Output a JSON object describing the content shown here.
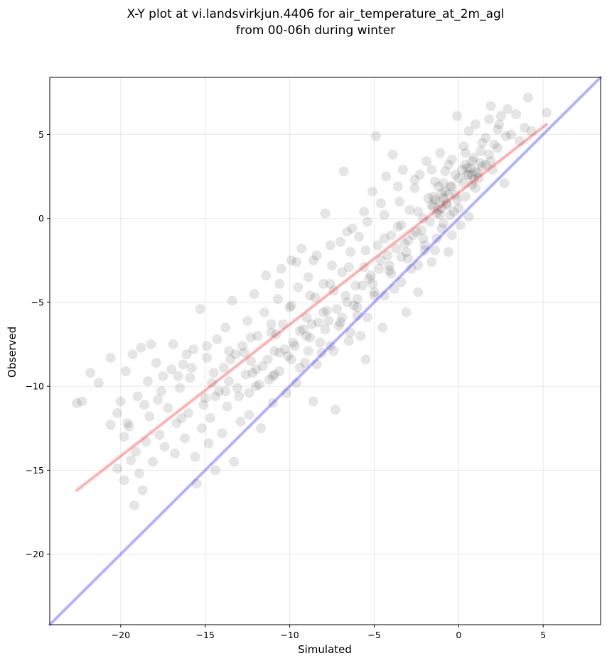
{
  "chart_data": {
    "type": "scatter",
    "title": "X-Y plot at vi.landsvirkjun.4406 for air_temperature_at_2m_agl",
    "subtitle": "from 00-06h during winter",
    "xlabel": "Simulated",
    "ylabel": "Observed",
    "xlim": [
      -24.2,
      8.4
    ],
    "ylim": [
      -24.2,
      8.4
    ],
    "x_ticks": [
      -20,
      -15,
      -10,
      -5,
      0,
      5
    ],
    "y_ticks": [
      -20,
      -15,
      -10,
      -5,
      0,
      5
    ],
    "x_tick_labels": [
      "−20",
      "−15",
      "−10",
      "−5",
      "0",
      "5"
    ],
    "y_tick_labels": [
      "−20",
      "−15",
      "−10",
      "−5",
      "0",
      "5"
    ],
    "grid": true,
    "point_color": "#000000",
    "point_alpha": 0.1,
    "points": [
      [
        -22.6,
        -11.0
      ],
      [
        -22.3,
        -10.9
      ],
      [
        -21.8,
        -9.2
      ],
      [
        -21.3,
        -9.8
      ],
      [
        -20.6,
        -8.3
      ],
      [
        -20.6,
        -12.3
      ],
      [
        -20.2,
        -14.9
      ],
      [
        -20.0,
        -10.9
      ],
      [
        -19.8,
        -15.6
      ],
      [
        -19.8,
        -13.0
      ],
      [
        -19.7,
        -9.1
      ],
      [
        -19.5,
        -12.4
      ],
      [
        -19.4,
        -14.4
      ],
      [
        -19.3,
        -8.1
      ],
      [
        -19.2,
        -17.1
      ],
      [
        -19.1,
        -13.9
      ],
      [
        -19.0,
        -10.6
      ],
      [
        -18.9,
        -15.2
      ],
      [
        -18.8,
        -7.7
      ],
      [
        -18.7,
        -16.2
      ],
      [
        -18.5,
        -13.3
      ],
      [
        -18.4,
        -9.7
      ],
      [
        -18.3,
        -11.8
      ],
      [
        -18.2,
        -7.5
      ],
      [
        -18.1,
        -14.5
      ],
      [
        -17.9,
        -8.6
      ],
      [
        -17.7,
        -12.9
      ],
      [
        -17.6,
        -10.3
      ],
      [
        -17.4,
        -13.6
      ],
      [
        -17.2,
        -11.3
      ],
      [
        -17.0,
        -9.0
      ],
      [
        -16.9,
        -7.5
      ],
      [
        -16.8,
        -14.0
      ],
      [
        -16.7,
        -12.2
      ],
      [
        -16.5,
        -10.1
      ],
      [
        -16.3,
        -8.7
      ],
      [
        -16.2,
        -13.1
      ],
      [
        -16.0,
        -11.6
      ],
      [
        -15.9,
        -9.5
      ],
      [
        -15.7,
        -7.8
      ],
      [
        -15.6,
        -14.2
      ],
      [
        -15.5,
        -15.8
      ],
      [
        -15.3,
        -5.4
      ],
      [
        -15.2,
        -12.5
      ],
      [
        -15.0,
        -10.7
      ],
      [
        -14.9,
        -8.3
      ],
      [
        -14.8,
        -13.4
      ],
      [
        -14.7,
        -11.9
      ],
      [
        -14.5,
        -9.2
      ],
      [
        -14.4,
        -15.0
      ],
      [
        -14.3,
        -7.2
      ],
      [
        -14.2,
        -10.3
      ],
      [
        -14.0,
        -12.8
      ],
      [
        -13.9,
        -8.9
      ],
      [
        -13.8,
        -6.5
      ],
      [
        -13.7,
        -11.2
      ],
      [
        -13.6,
        -9.7
      ],
      [
        -13.4,
        -4.9
      ],
      [
        -13.3,
        -14.5
      ],
      [
        -13.2,
        -8.1
      ],
      [
        -13.0,
        -10.6
      ],
      [
        -12.9,
        -12.1
      ],
      [
        -12.8,
        -7.6
      ],
      [
        -12.6,
        -9.3
      ],
      [
        -12.5,
        -6.1
      ],
      [
        -12.4,
        -11.7
      ],
      [
        -12.3,
        -8.5
      ],
      [
        -12.1,
        -4.5
      ],
      [
        -12.0,
        -10.0
      ],
      [
        -11.9,
        -7.0
      ],
      [
        -11.7,
        -12.5
      ],
      [
        -11.6,
        -8.8
      ],
      [
        -11.5,
        -5.6
      ],
      [
        -11.4,
        -3.4
      ],
      [
        -11.2,
        -9.6
      ],
      [
        -11.1,
        -6.8
      ],
      [
        -11.0,
        -11.0
      ],
      [
        -10.9,
        -7.9
      ],
      [
        -10.7,
        -4.8
      ],
      [
        -10.6,
        -9.1
      ],
      [
        -10.5,
        -3.0
      ],
      [
        -10.4,
        -6.3
      ],
      [
        -10.2,
        -10.4
      ],
      [
        -10.1,
        -8.2
      ],
      [
        -10.0,
        -5.3
      ],
      [
        -9.9,
        -2.5
      ],
      [
        -9.8,
        -7.4
      ],
      [
        -9.6,
        -9.8
      ],
      [
        -9.5,
        -4.1
      ],
      [
        -9.4,
        -6.7
      ],
      [
        -9.3,
        -1.8
      ],
      [
        -9.1,
        -8.6
      ],
      [
        -9.0,
        -5.9
      ],
      [
        -8.9,
        -3.5
      ],
      [
        -8.8,
        -7.1
      ],
      [
        -8.6,
        -10.9
      ],
      [
        -8.5,
        -4.7
      ],
      [
        -8.4,
        -2.2
      ],
      [
        -8.3,
        -6.2
      ],
      [
        -8.1,
        -8.0
      ],
      [
        -8.0,
        -3.9
      ],
      [
        -7.9,
        0.3
      ],
      [
        -7.8,
        -5.5
      ],
      [
        -7.6,
        -7.6
      ],
      [
        -7.5,
        -2.8
      ],
      [
        -7.4,
        -4.3
      ],
      [
        -7.3,
        -11.4
      ],
      [
        -7.1,
        -6.4
      ],
      [
        -7.0,
        -1.4
      ],
      [
        -6.9,
        -3.2
      ],
      [
        -6.8,
        2.8
      ],
      [
        -6.6,
        -5.0
      ],
      [
        -6.5,
        -7.3
      ],
      [
        -6.4,
        -2.0
      ],
      [
        -6.3,
        -0.6
      ],
      [
        -6.1,
        -4.0
      ],
      [
        -6.0,
        -5.8
      ],
      [
        -5.9,
        -1.1
      ],
      [
        -5.8,
        -7.0
      ],
      [
        -5.6,
        -2.9
      ],
      [
        -5.5,
        -8.4
      ],
      [
        -5.4,
        -0.2
      ],
      [
        -5.3,
        -3.6
      ],
      [
        -5.1,
        1.6
      ],
      [
        -5.0,
        -4.6
      ],
      [
        -4.9,
        4.9
      ],
      [
        -4.8,
        -1.6
      ],
      [
        -4.6,
        -2.5
      ],
      [
        -4.5,
        -6.5
      ],
      [
        -4.4,
        0.2
      ],
      [
        -4.3,
        2.5
      ],
      [
        -4.1,
        -3.1
      ],
      [
        -4.0,
        -1.0
      ],
      [
        -3.9,
        3.8
      ],
      [
        -3.8,
        -4.2
      ],
      [
        -3.6,
        -0.5
      ],
      [
        -3.5,
        1.0
      ],
      [
        -3.4,
        -2.3
      ],
      [
        -3.3,
        2.9
      ],
      [
        -3.1,
        -5.6
      ],
      [
        -3.0,
        -1.3
      ],
      [
        -2.9,
        0.5
      ],
      [
        -2.8,
        -3.0
      ],
      [
        -2.6,
        1.8
      ],
      [
        -2.5,
        -0.8
      ],
      [
        -2.4,
        -4.4
      ],
      [
        -2.3,
        2.6
      ],
      [
        -2.1,
        0.0
      ],
      [
        -2.0,
        -1.9
      ],
      [
        -1.9,
        3.4
      ],
      [
        -1.8,
        1.2
      ],
      [
        -1.6,
        -2.6
      ],
      [
        -1.5,
        0.7
      ],
      [
        -1.4,
        2.2
      ],
      [
        -1.3,
        -1.2
      ],
      [
        -1.1,
        3.9
      ],
      [
        -1.0,
        1.5
      ],
      [
        -0.9,
        -0.3
      ],
      [
        -0.8,
        2.8
      ],
      [
        -0.6,
        -2.0
      ],
      [
        -0.5,
        1.9
      ],
      [
        -0.4,
        3.5
      ],
      [
        -0.3,
        0.4
      ],
      [
        -0.1,
        6.1
      ],
      [
        0.0,
        2.4
      ],
      [
        0.1,
        -0.4
      ],
      [
        0.3,
        4.3
      ],
      [
        0.4,
        1.3
      ],
      [
        0.5,
        3.0
      ],
      [
        0.6,
        5.2
      ],
      [
        0.8,
        2.0
      ],
      [
        0.9,
        3.6
      ],
      [
        1.0,
        5.6
      ],
      [
        1.1,
        2.7
      ],
      [
        1.3,
        4.0
      ],
      [
        1.4,
        3.1
      ],
      [
        1.6,
        4.8
      ],
      [
        1.8,
        5.9
      ],
      [
        1.9,
        6.7
      ],
      [
        2.1,
        4.4
      ],
      [
        2.3,
        5.3
      ],
      [
        2.5,
        6.1
      ],
      [
        2.7,
        2.1
      ],
      [
        2.9,
        6.5
      ],
      [
        3.1,
        5.0
      ],
      [
        3.4,
        6.2
      ],
      [
        3.6,
        4.6
      ],
      [
        3.9,
        5.4
      ],
      [
        4.1,
        7.2
      ],
      [
        4.3,
        5.2
      ],
      [
        5.2,
        6.3
      ],
      [
        -20.2,
        -11.6
      ],
      [
        -19.6,
        -12.2
      ],
      [
        -18.6,
        -11.1
      ],
      [
        -17.8,
        -10.8
      ],
      [
        -16.6,
        -9.4
      ],
      [
        -15.8,
        -8.9
      ],
      [
        -14.6,
        -9.8
      ],
      [
        -13.5,
        -8.4
      ],
      [
        -12.7,
        -8.0
      ],
      [
        -12.2,
        -9.2
      ],
      [
        -11.3,
        -8.4
      ],
      [
        -10.8,
        -6.9
      ],
      [
        -10.3,
        -7.8
      ],
      [
        -9.7,
        -7.6
      ],
      [
        -9.2,
        -6.6
      ],
      [
        -8.7,
        -6.3
      ],
      [
        -8.2,
        -7.4
      ],
      [
        -7.7,
        -6.1
      ],
      [
        -7.2,
        -5.4
      ],
      [
        -6.7,
        -4.6
      ],
      [
        -6.2,
        -5.2
      ],
      [
        -5.7,
        -4.0
      ],
      [
        -5.2,
        -3.4
      ],
      [
        -4.7,
        -3.0
      ],
      [
        -4.2,
        -2.2
      ],
      [
        -3.7,
        -1.8
      ],
      [
        -3.2,
        -1.5
      ],
      [
        -2.7,
        -1.0
      ],
      [
        -2.2,
        -0.7
      ],
      [
        -1.7,
        -0.2
      ],
      [
        -1.2,
        0.5
      ],
      [
        -0.7,
        0.9
      ],
      [
        -0.2,
        1.4
      ],
      [
        0.3,
        2.1
      ],
      [
        0.8,
        2.6
      ],
      [
        1.3,
        3.3
      ],
      [
        1.8,
        3.8
      ],
      [
        2.3,
        4.2
      ],
      [
        2.8,
        4.9
      ],
      [
        -11.8,
        -9.9
      ],
      [
        -10.9,
        -9.3
      ],
      [
        -9.4,
        -8.9
      ],
      [
        -8.4,
        -8.7
      ],
      [
        -7.4,
        -7.9
      ],
      [
        -6.4,
        -6.8
      ],
      [
        -5.4,
        -5.9
      ],
      [
        -4.4,
        -4.6
      ],
      [
        -3.4,
        -3.8
      ],
      [
        -2.4,
        -2.8
      ],
      [
        -1.4,
        -1.9
      ],
      [
        -0.4,
        -1.0
      ],
      [
        0.6,
        0.1
      ],
      [
        -14.4,
        -10.6
      ],
      [
        -13.1,
        -10.1
      ],
      [
        -12.0,
        -9.0
      ],
      [
        -10.6,
        -8.0
      ],
      [
        -9.0,
        -7.0
      ],
      [
        -8.0,
        -5.6
      ],
      [
        -6.9,
        -5.9
      ],
      [
        -6.0,
        -4.8
      ],
      [
        -5.0,
        -4.4
      ],
      [
        -4.0,
        -3.3
      ],
      [
        -3.0,
        -2.4
      ],
      [
        -2.0,
        -1.6
      ],
      [
        -1.0,
        -0.6
      ],
      [
        0.0,
        0.6
      ],
      [
        1.0,
        1.8
      ],
      [
        2.0,
        2.9
      ],
      [
        -16.4,
        -11.9
      ],
      [
        -15.1,
        -11.1
      ],
      [
        -13.8,
        -10.3
      ],
      [
        -12.4,
        -10.4
      ],
      [
        -11.0,
        -9.4
      ],
      [
        -9.9,
        -8.4
      ],
      [
        -8.9,
        -7.9
      ],
      [
        -7.9,
        -6.6
      ],
      [
        -7.0,
        -6.2
      ],
      [
        -6.0,
        -5.3
      ],
      [
        -5.1,
        -3.9
      ],
      [
        -4.1,
        -2.8
      ],
      [
        -3.1,
        -2.0
      ],
      [
        -2.1,
        -1.2
      ],
      [
        -1.1,
        0.2
      ],
      [
        -0.1,
        1.1
      ],
      [
        0.9,
        2.3
      ],
      [
        1.9,
        3.4
      ],
      [
        -17.5,
        -9.4
      ],
      [
        -16.1,
        -8.1
      ],
      [
        -14.9,
        -7.6
      ],
      [
        -13.6,
        -7.9
      ],
      [
        -12.3,
        -7.1
      ],
      [
        -11.1,
        -6.3
      ],
      [
        -9.9,
        -5.2
      ],
      [
        -8.8,
        -4.6
      ],
      [
        -7.6,
        -3.9
      ],
      [
        -6.5,
        -2.9
      ],
      [
        -5.5,
        -1.9
      ],
      [
        -4.4,
        -1.2
      ],
      [
        -3.4,
        -0.4
      ],
      [
        -2.4,
        0.4
      ],
      [
        -1.4,
        1.1
      ],
      [
        -0.4,
        1.9
      ],
      [
        0.6,
        2.6
      ],
      [
        1.6,
        3.2
      ],
      [
        -10.6,
        -3.9
      ],
      [
        -9.6,
        -2.6
      ],
      [
        -8.6,
        -2.5
      ],
      [
        -7.6,
        -1.6
      ],
      [
        -6.6,
        -0.8
      ],
      [
        -5.6,
        0.4
      ],
      [
        -4.6,
        0.9
      ],
      [
        -3.6,
        1.9
      ],
      [
        -2.6,
        2.3
      ],
      [
        -1.6,
        2.9
      ],
      [
        -0.6,
        3.2
      ],
      [
        0.4,
        3.9
      ],
      [
        1.4,
        4.5
      ],
      [
        2.4,
        5.6
      ],
      [
        -1.2,
        1.9
      ],
      [
        -0.9,
        1.2
      ],
      [
        -1.0,
        0.6
      ],
      [
        -0.8,
        1.6
      ],
      [
        -1.1,
        1.0
      ],
      [
        -0.7,
        0.8
      ],
      [
        -0.6,
        1.4
      ],
      [
        -1.3,
        0.3
      ],
      [
        -0.5,
        0.2
      ],
      [
        -1.5,
        1.3
      ],
      [
        -0.9,
        2.1
      ],
      [
        -1.6,
        0.8
      ],
      [
        0.2,
        2.9
      ],
      [
        0.4,
        3.2
      ],
      [
        0.7,
        3.0
      ],
      [
        1.0,
        2.8
      ],
      [
        0.5,
        2.6
      ],
      [
        0.8,
        3.4
      ],
      [
        1.2,
        2.4
      ],
      [
        -0.2,
        2.6
      ]
    ],
    "series": [
      {
        "color": "#ff0000",
        "alpha": 0.3,
        "x": [
          -22.6,
          5.2
        ],
        "y": [
          -16.2,
          5.6
        ]
      },
      {
        "color": "#0000ff",
        "alpha": 0.3,
        "x": [
          -24.2,
          8.4
        ],
        "y": [
          -24.2,
          8.4
        ]
      }
    ]
  }
}
